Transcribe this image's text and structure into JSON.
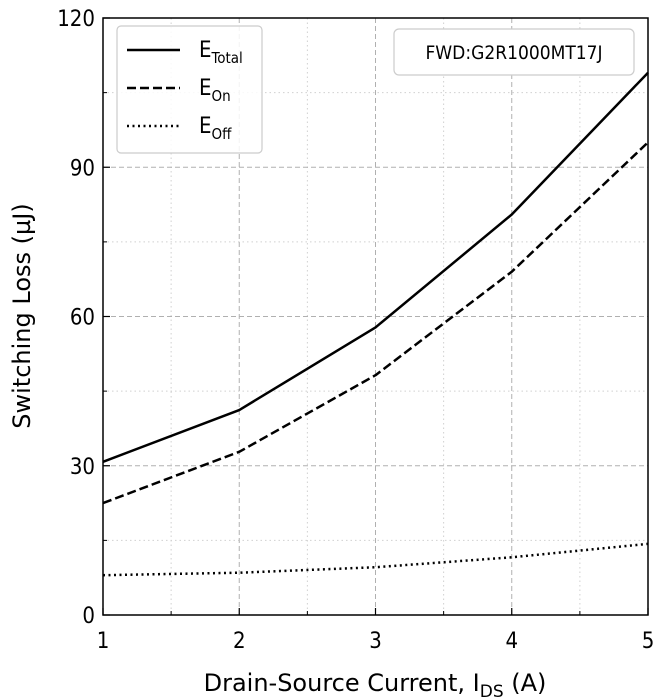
{
  "chart_data": {
    "type": "line",
    "xlabel": {
      "main": "Drain-Source Current, I",
      "sub": "DS",
      "tail": " (A)"
    },
    "ylabel": "Switching Loss (µJ)",
    "xlim": [
      1,
      5
    ],
    "ylim": [
      0,
      120
    ],
    "xticks": [
      1,
      2,
      3,
      4,
      5
    ],
    "yticks": [
      0,
      30,
      60,
      90,
      120
    ],
    "x_minor": [
      1.5,
      2.5,
      3.5,
      4.5
    ],
    "y_minor": [
      15,
      45,
      75,
      105
    ],
    "grid": true,
    "legend_position": "top-left",
    "x": [
      1,
      2,
      3,
      4,
      5
    ],
    "series": [
      {
        "name": "E",
        "sub": "Total",
        "style": "solid",
        "values": [
          30.8,
          41.2,
          57.8,
          80.5,
          109
        ]
      },
      {
        "name": "E",
        "sub": "On",
        "style": "dashed",
        "values": [
          22.5,
          32.8,
          48.2,
          69,
          95
        ]
      },
      {
        "name": "E",
        "sub": "Off",
        "style": "dotted",
        "values": [
          8,
          8.5,
          9.6,
          11.6,
          14.3
        ]
      }
    ],
    "annotation": "FWD:G2R1000MT17J",
    "line_color": "#000000",
    "grid_color": "#b0b0b0"
  }
}
